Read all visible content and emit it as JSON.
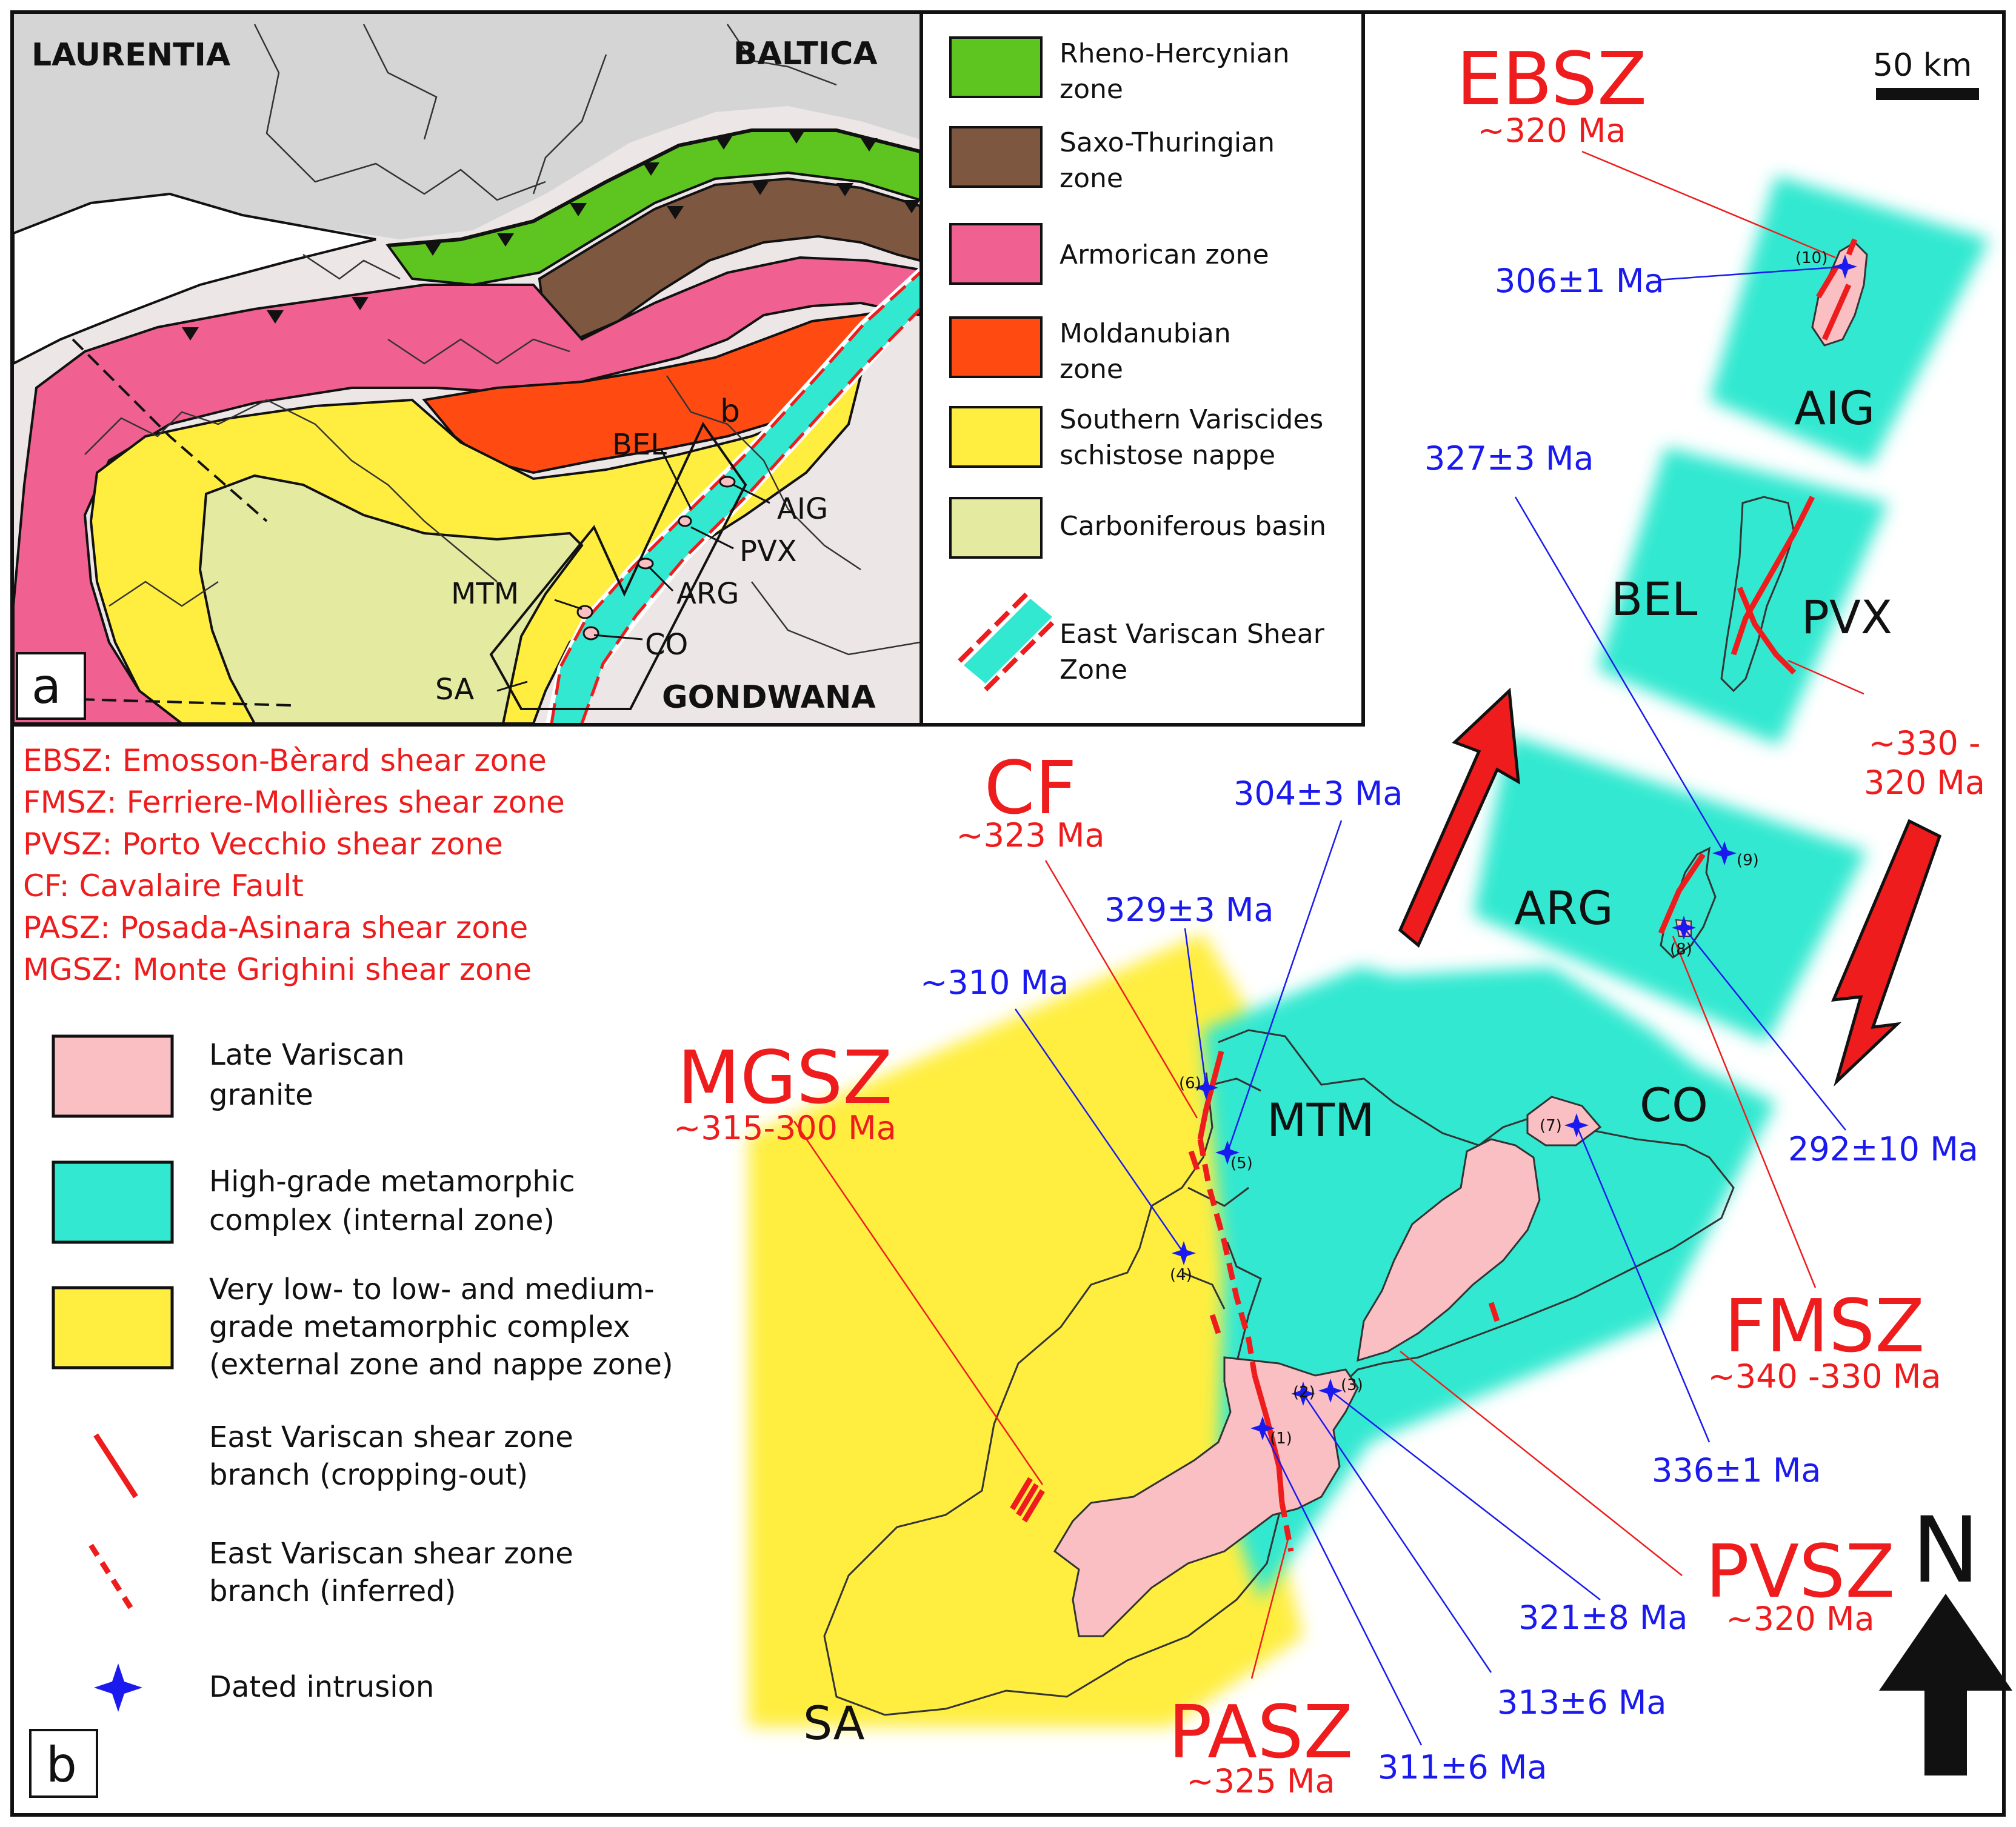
{
  "colors": {
    "rheno_hercynian": "#5ec41f",
    "saxo_thuringian": "#7e5741",
    "armorican": "#f06090",
    "moldanubian": "#ff4a12",
    "southern_variscides": "#ffee40",
    "carboniferous": "#e4eaa0",
    "high_grade": "#33e8d0",
    "granite": "#f9bfc3",
    "shear_red": "#ee1c1c",
    "date_blue": "#1a1aee",
    "landmass_grey": "#d6d5d6",
    "gondwana_grey": "#ece6e6"
  },
  "panel_a": {
    "label": "a",
    "cratons": {
      "laurentia": "LAURENTIA",
      "baltica": "BALTICA",
      "gondwana": "GONDWANA"
    },
    "box_label": "b",
    "sites": {
      "bel": "BEL",
      "aig": "AIG",
      "pvx": "PVX",
      "arg": "ARG",
      "mtm": "MTM",
      "co": "CO",
      "sa": "SA"
    }
  },
  "legend_a": [
    {
      "color": "#5ec41f",
      "lines": [
        "Rheno-Hercynian",
        "zone"
      ]
    },
    {
      "color": "#7e5741",
      "lines": [
        "Saxo-Thuringian",
        "zone"
      ]
    },
    {
      "color": "#f06090",
      "lines": [
        "Armorican zone"
      ]
    },
    {
      "color": "#ff4a12",
      "lines": [
        "Moldanubian",
        "zone"
      ]
    },
    {
      "color": "#ffee40",
      "lines": [
        "Southern Variscides",
        "schistose nappe"
      ]
    },
    {
      "color": "#e4eaa0",
      "lines": [
        "Carboniferous basin"
      ]
    },
    {
      "color": "shear",
      "lines": [
        "East Variscan Shear",
        "Zone"
      ]
    }
  ],
  "panel_b": {
    "label": "b",
    "scale_label": "50 km",
    "north_label": "N",
    "abbreviations": [
      "EBSZ: Emosson-Bèrard shear zone",
      "FMSZ: Ferriere-Mollières shear zone",
      "PVSZ: Porto Vecchio shear zone",
      "CF: Cavalaire Fault",
      "PASZ: Posada-Asinara shear zone",
      "MGSZ: Monte Grighini shear zone"
    ],
    "legend": {
      "granite": [
        "Late Variscan",
        "granite"
      ],
      "high_grade": [
        "High-grade metamorphic",
        "complex (internal zone)"
      ],
      "low_grade": [
        "Very low- to low- and medium-",
        "grade metamorphic complex",
        "(external zone and nappe zone)"
      ],
      "shear_out": [
        "East Variscan shear zone",
        "branch (cropping-out)"
      ],
      "shear_inf": [
        "East Variscan shear zone",
        "branch (inferred)"
      ],
      "dated": [
        "Dated intrusion"
      ]
    },
    "regions": {
      "aig": "AIG",
      "bel": "BEL",
      "pvx": "PVX",
      "arg": "ARG",
      "mtm": "MTM",
      "co": "CO",
      "sa": "SA"
    },
    "shear_zones": {
      "ebsz": {
        "name": "EBSZ",
        "age": "~320 Ma"
      },
      "cf": {
        "name": "CF",
        "age": "~323 Ma"
      },
      "mgsz": {
        "name": "MGSZ",
        "age": "~315-300 Ma"
      },
      "fmsz": {
        "name": "FMSZ",
        "age": "~340 -330 Ma"
      },
      "pvsz": {
        "name": "PVSZ",
        "age": "~320 Ma"
      },
      "pasz": {
        "name": "PASZ",
        "age": "~325 Ma"
      },
      "pvx_age": [
        "~330 -",
        "320 Ma"
      ]
    },
    "site_numbers": [
      "(1)",
      "(2)",
      "(3)",
      "(4)",
      "(5)",
      "(6)",
      "(7)",
      "(8)",
      "(9)",
      "(10)"
    ],
    "dates": {
      "d306": "306±1 Ma",
      "d327": "327±3 Ma",
      "d304": "304±3 Ma",
      "d329": "329±3 Ma",
      "d310": "~310 Ma",
      "d292": "292±10 Ma",
      "d336": "336±1 Ma",
      "d321": "321±8 Ma",
      "d313": "313±6 Ma",
      "d311": "311±6 Ma"
    }
  }
}
